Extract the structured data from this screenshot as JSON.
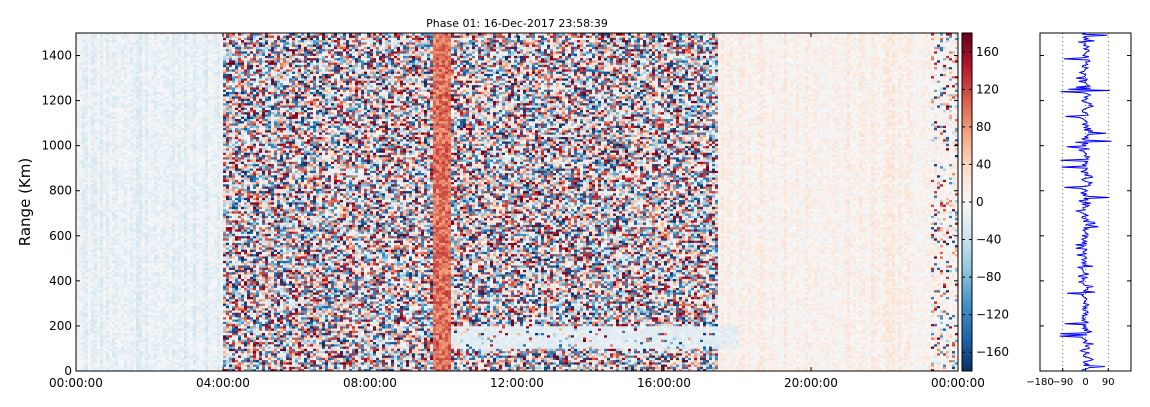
{
  "chart_data": [
    {
      "type": "heatmap",
      "title": "Phase 01: 16-Dec-2017 23:58:39",
      "ylabel": "Range (Km)",
      "xlabel": "",
      "x_tick_labels": [
        "00:00:00",
        "04:00:00",
        "08:00:00",
        "12:00:00",
        "16:00:00",
        "20:00:00",
        "00:00:00"
      ],
      "x_range_hours": [
        0,
        24
      ],
      "y_ticks": [
        0,
        200,
        400,
        600,
        800,
        1000,
        1200,
        1400
      ],
      "ylim": [
        0,
        1500
      ],
      "colorbar": {
        "ticks": [
          160,
          120,
          80,
          40,
          0,
          -40,
          -80,
          -120,
          -160
        ],
        "range": [
          -180,
          180
        ],
        "colormap": "RdBu_r"
      },
      "regions": [
        {
          "hours": [
            0,
            4
          ],
          "description": "smooth low values",
          "typical_value": -15
        },
        {
          "hours": [
            4,
            17.5
          ],
          "description": "random phase noise",
          "typical_value": 0
        },
        {
          "hours": [
            9.7,
            10.2
          ],
          "description": "persistent positive band",
          "typical_value": 100
        },
        {
          "hours": [
            17.5,
            24
          ],
          "description": "smooth low values",
          "typical_value": 10
        },
        {
          "hours": [
            10,
            18
          ],
          "range_km": [
            100,
            200
          ],
          "description": "low-value echo layer",
          "typical_value": -20
        }
      ]
    },
    {
      "type": "line",
      "title": "",
      "x_tick_labels": [
        "−180",
        "−90",
        "0",
        "90"
      ],
      "xlim": [
        -180,
        180
      ],
      "ylim": [
        0,
        1500
      ],
      "series": [
        {
          "color": "#0000ff"
        }
      ]
    }
  ]
}
